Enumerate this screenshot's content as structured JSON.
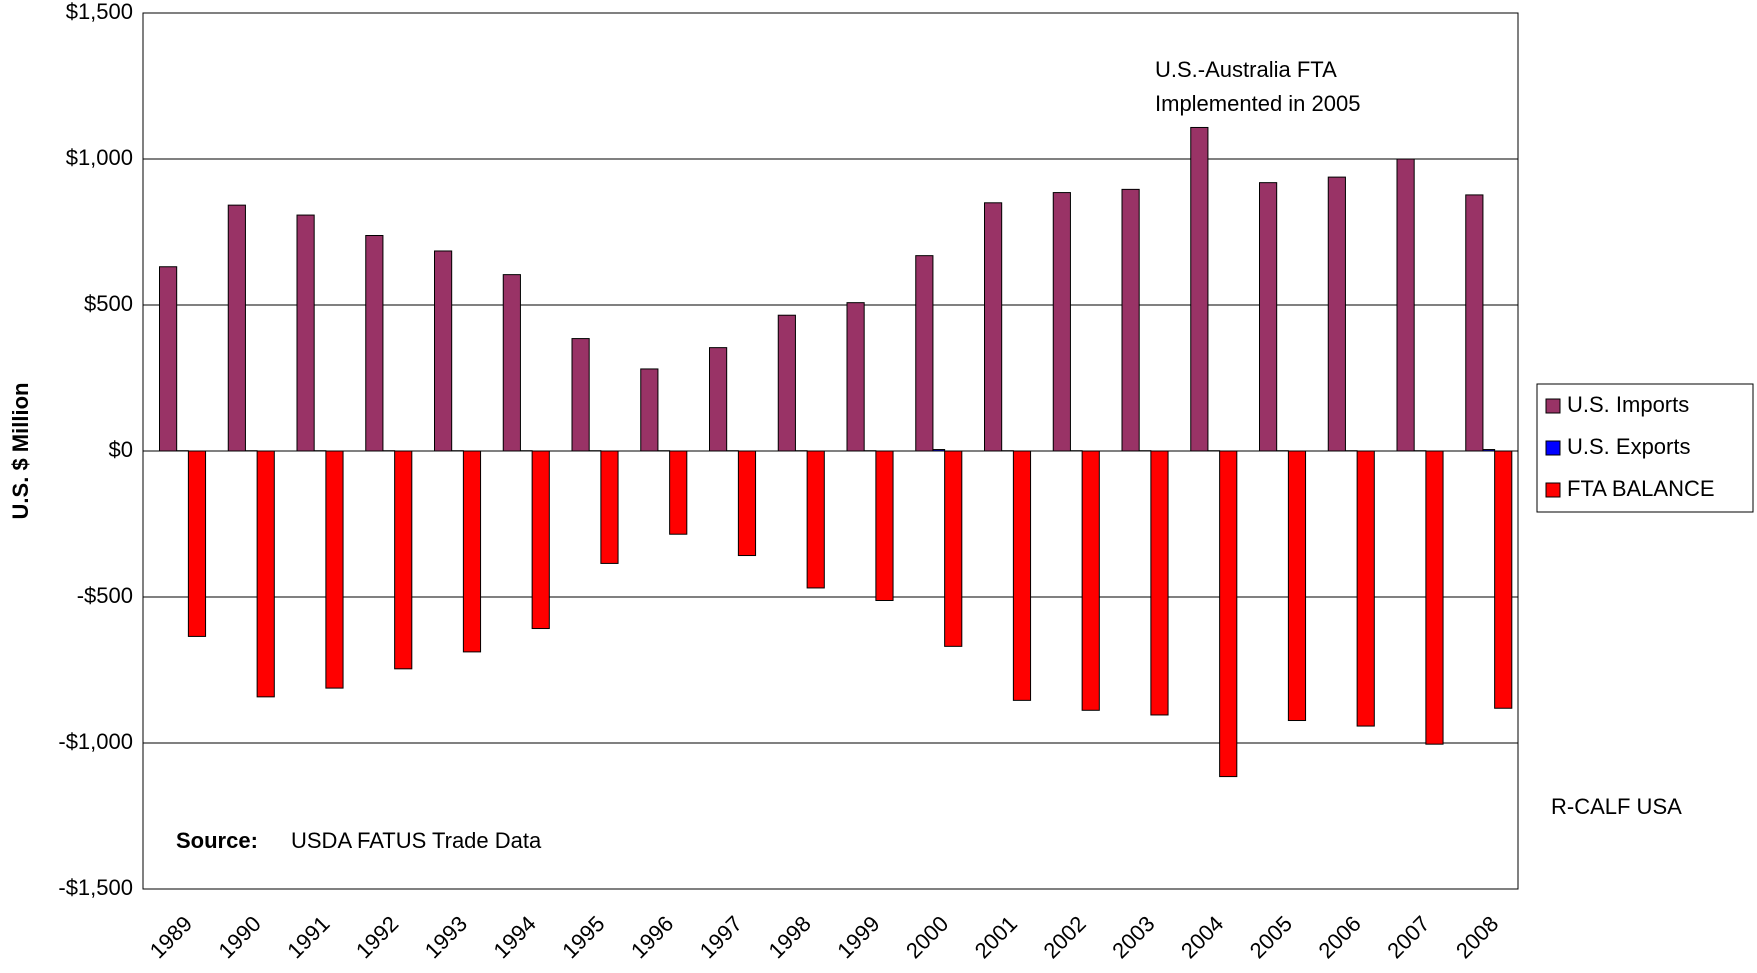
{
  "chart_data": {
    "type": "bar",
    "y_label": "U.S. $ Million",
    "categories": [
      "1989",
      "1990",
      "1991",
      "1992",
      "1993",
      "1994",
      "1995",
      "1996",
      "1997",
      "1998",
      "1999",
      "2000",
      "2001",
      "2002",
      "2003",
      "2004",
      "2005",
      "2006",
      "2007",
      "2008"
    ],
    "series": [
      {
        "name": "U.S. Imports",
        "color": "#993366",
        "values": [
          631,
          842,
          808,
          738,
          685,
          604,
          385,
          281,
          354,
          465,
          508,
          669,
          850,
          885,
          896,
          1108,
          919,
          938,
          1000,
          877
        ]
      },
      {
        "name": "U.S. Exports",
        "color": "#0000ff",
        "values": [
          1,
          1,
          1,
          1,
          1,
          1,
          1,
          1,
          1,
          1,
          1,
          5,
          1,
          1,
          1,
          1,
          1,
          1,
          1,
          5
        ]
      },
      {
        "name": "FTA BALANCE",
        "color": "#ff0000",
        "values": [
          -635,
          -842,
          -812,
          -746,
          -688,
          -608,
          -385,
          -285,
          -358,
          -469,
          -512,
          -669,
          -854,
          -888,
          -904,
          -1115,
          -923,
          -942,
          -1004,
          -881
        ]
      }
    ],
    "ylim": [
      -1500,
      1500
    ],
    "yticks": [
      {
        "value": -1500,
        "label": "-$1,500"
      },
      {
        "value": -1000,
        "label": "-$1,000"
      },
      {
        "value": -500,
        "label": "-$500"
      },
      {
        "value": 0,
        "label": "$0"
      },
      {
        "value": 500,
        "label": "$500"
      },
      {
        "value": 1000,
        "label": "$1,000"
      },
      {
        "value": 1500,
        "label": "$1,500"
      }
    ],
    "grid": true,
    "legend": "right",
    "annotations": [
      "U.S.-Australia FTA",
      "Implemented in 2005"
    ],
    "source_label": "Source:",
    "source": "USDA FATUS Trade Data",
    "credit": "R-CALF USA"
  }
}
